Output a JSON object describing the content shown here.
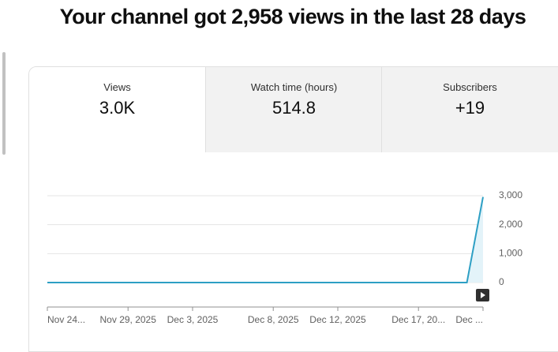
{
  "header": {
    "title": "Your channel got 2,958 views in the last 28 days"
  },
  "tabs": [
    {
      "label": "Views",
      "value": "3.0K"
    },
    {
      "label": "Watch time (hours)",
      "value": "514.8"
    },
    {
      "label": "Subscribers",
      "value": "+19"
    }
  ],
  "chart_data": {
    "type": "line",
    "categories": [
      "Nov 24...",
      null,
      null,
      null,
      null,
      "Nov 29, 2025",
      null,
      null,
      null,
      "Dec 3, 2025",
      null,
      null,
      null,
      null,
      "Dec 8, 2025",
      null,
      null,
      null,
      "Dec 12, 2025",
      null,
      null,
      null,
      null,
      "Dec 17, 20...",
      null,
      null,
      null,
      "Dec ..."
    ],
    "values": [
      0,
      0,
      0,
      0,
      0,
      0,
      0,
      0,
      0,
      0,
      0,
      0,
      0,
      0,
      0,
      0,
      0,
      0,
      0,
      0,
      0,
      0,
      0,
      0,
      0,
      0,
      0,
      2958
    ],
    "color": "#2d9fc4",
    "area_color": "#e3f3f9",
    "ylim": [
      0,
      3000
    ],
    "yticks": [
      0,
      {
        "value": 1000,
        "label": "1,000"
      },
      {
        "value": 2000,
        "label": "2,000"
      },
      {
        "value": 3000,
        "label": "3,000"
      }
    ],
    "grid": true
  }
}
